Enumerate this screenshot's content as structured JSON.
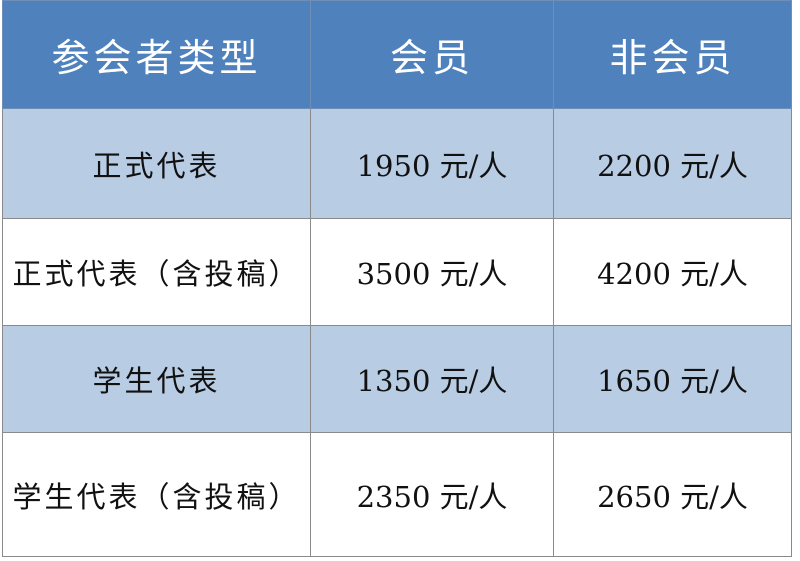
{
  "table": {
    "headers": [
      "参会者类型",
      "会员",
      "非会员"
    ],
    "rows": [
      {
        "type": "正式代表",
        "member": "1950 元/人",
        "non_member": "2200 元/人"
      },
      {
        "type": "正式代表（含投稿）",
        "member": "3500 元/人",
        "non_member": "4200 元/人"
      },
      {
        "type": "学生代表",
        "member": "1350 元/人",
        "non_member": "1650 元/人"
      },
      {
        "type": "学生代表（含投稿）",
        "member": "2350 元/人",
        "non_member": "2650 元/人"
      }
    ]
  },
  "colors": {
    "header_bg": "#4f81bd",
    "band_bg": "#b8cce4",
    "header_text": "#ffffff"
  }
}
